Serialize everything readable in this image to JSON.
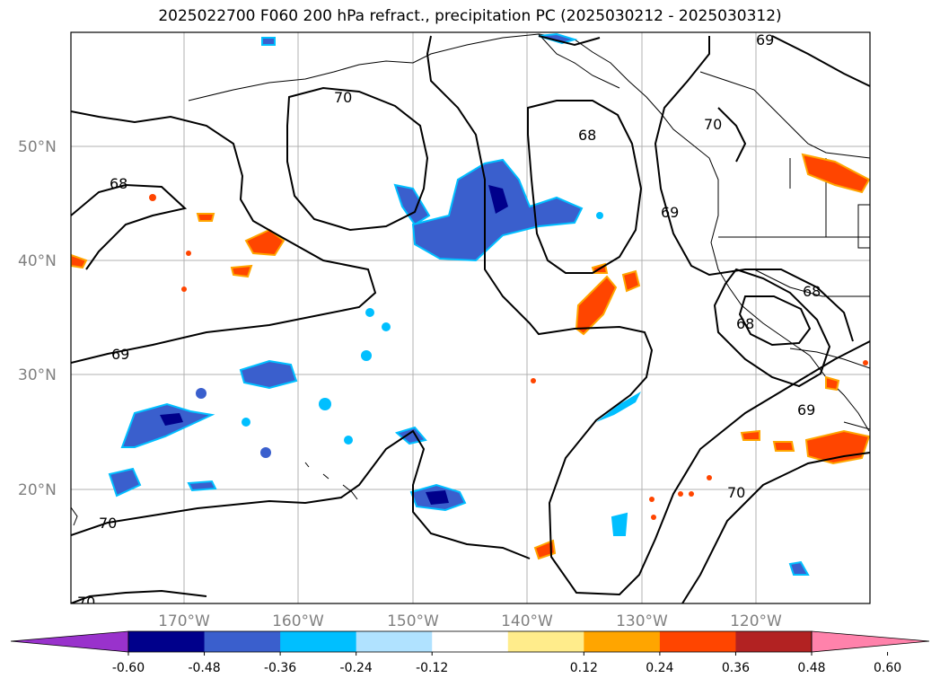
{
  "title": "2025022700 F060 200 hPa refract., precipitation PC (2025030212 - 2025030312)",
  "map": {
    "lat_labels": [
      "50°N",
      "40°N",
      "30°N",
      "20°N"
    ],
    "lon_labels": [
      "170°W",
      "160°W",
      "150°W",
      "140°W",
      "130°W",
      "120°W"
    ],
    "contour_labels": [
      "70",
      "68",
      "69",
      "68",
      "70",
      "69",
      "68",
      "69",
      "69",
      "68",
      "70",
      "70",
      "70"
    ]
  },
  "colorbar": {
    "colors": [
      "#9932CC",
      "#00008B",
      "#3A5FCD",
      "#00BFFF",
      "#B0E2FF",
      "#FFFFFF",
      "#FFEC8B",
      "#FFA500",
      "#FF4500",
      "#B22222",
      "#FF82AB"
    ],
    "tick_labels": [
      "-0.60",
      "-0.48",
      "-0.36",
      "-0.24",
      "-0.12",
      "0.12",
      "0.24",
      "0.36",
      "0.48",
      "0.60"
    ]
  }
}
